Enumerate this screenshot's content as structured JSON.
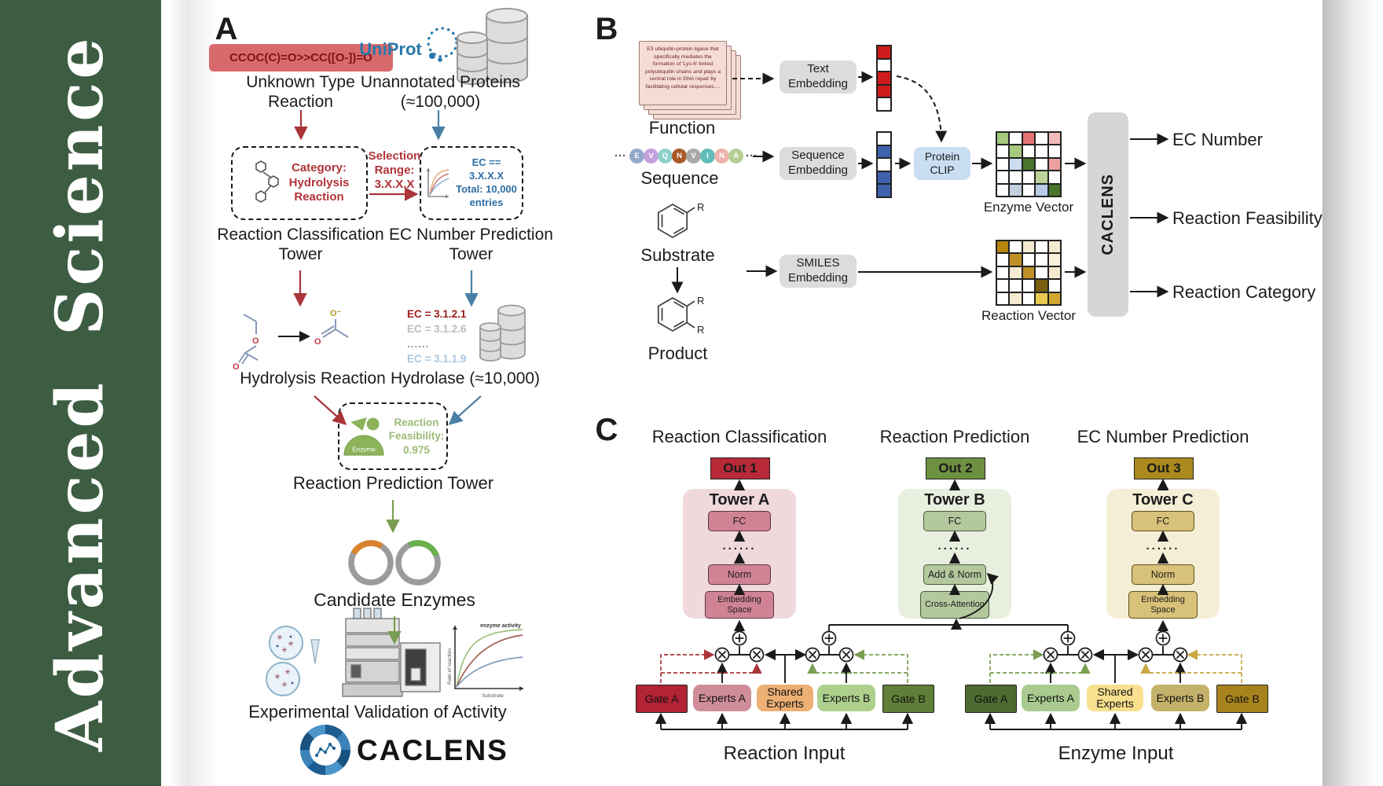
{
  "colors": {
    "sidebar_green": "#3d5d42",
    "accent_red": "#a93439",
    "accent_blue": "#4a7fa5",
    "accent_green": "#7a9e52",
    "uniprot_blue": "#2878ab"
  },
  "journal": {
    "name": "Advanced Science"
  },
  "panel_a": {
    "label": "A",
    "smiles": "CCOC(C)=O>>CC([O-])=O",
    "unknown_reaction": "Unknown Type Reaction",
    "uniprot": "UniProt",
    "unannotated": "Unannotated Proteins (≈100,000)",
    "category_lines": [
      "Category:",
      "Hydrolysis",
      "Reaction"
    ],
    "selection_lines": [
      "Selection",
      "Range:",
      "3.X.X.X"
    ],
    "ec_box_lines": [
      "EC == 3.X.X.X",
      "Total: 10,000",
      "entries"
    ],
    "classification_tower": "Reaction Classification Tower",
    "ec_tower": "EC Number Prediction Tower",
    "hydrolysis": "Hydrolysis Reaction",
    "ec_items": [
      "EC = 3.1.2.1",
      "EC = 3.1.2.6",
      "......",
      "EC = 3.1.1.9"
    ],
    "hydrolase": "Hydrolase (≈10,000)",
    "enzyme": "Enzyme",
    "feasibility_lines": [
      "Reaction",
      "Feasibility:",
      "0.975"
    ],
    "prediction_tower": "Reaction Prediction Tower",
    "candidate": "Candidate Enzymes",
    "validation": "Experimental Validation of Activity",
    "brand": "CACLENS",
    "atoms": {
      "o": "O",
      "o_minus": "O⁻"
    },
    "activity_chart": {
      "annotation": "enzyme activity",
      "ylabel": "Rate of reaction",
      "xlabel": "Substrate"
    }
  },
  "panel_b": {
    "label": "B",
    "function_card": "E3 ubiquitin-protein ligase that specifically mediates the formation of 'Lys-6'-linked polyubiquitin chains and plays a central role in DNA repair by facilitating cellular responses....",
    "function": "Function",
    "ellipsis": "···",
    "sequence_letters": [
      "E",
      "V",
      "Q",
      "N",
      "V",
      "I",
      "N",
      "A"
    ],
    "sequence_colors": [
      "#93a9cc",
      "#c2a0dc",
      "#8fd0cc",
      "#a85a28",
      "#a9a9a9",
      "#62bcbc",
      "#edb3ac",
      "#b5cf92"
    ],
    "sequence": "Sequence",
    "substrate": "Substrate",
    "product": "Product",
    "r": "R",
    "text_embedding": "Text Embedding",
    "sequence_embedding": "Sequence Embedding",
    "smiles_embedding": "SMILES Embedding",
    "protein_clip": "Protein CLIP",
    "text_vector": [
      "#cf1b1b",
      "#ffffff",
      "#cf1b1b",
      "#cf1b1b",
      "#ffffff"
    ],
    "sequence_vector": [
      "#ffffff",
      "#3f62ad",
      "#ffffff",
      "#3f62ad",
      "#3f62ad"
    ],
    "enzyme_vector_label": "Enzyme Vector",
    "reaction_vector_label": "Reaction Vector",
    "enzyme_grid": [
      [
        "#a6c97e",
        "#ffffff",
        "#e57373",
        "#ffffff",
        "#f2bcbc"
      ],
      [
        "#ffffff",
        "#a6c97e",
        "#ffffff",
        "#ffffff",
        "#ffffff"
      ],
      [
        "#ffffff",
        "#ccdcf0",
        "#49752c",
        "#ffffff",
        "#eda0a0"
      ],
      [
        "#ffffff",
        "#ffffff",
        "#ffffff",
        "#bcd49a",
        "#ffffff"
      ],
      [
        "#ffffff",
        "#c3cede",
        "#ffffff",
        "#b8cce8",
        "#49752c"
      ]
    ],
    "reaction_grid": [
      [
        "#b8860b",
        "#ffffff",
        "#f3ead0",
        "#ffffff",
        "#f3ead0"
      ],
      [
        "#ffffff",
        "#bf9025",
        "#ffffff",
        "#ffffff",
        "#f8f2dd"
      ],
      [
        "#ffffff",
        "#f3ead0",
        "#bf9025",
        "#ffffff",
        "#f3ead0"
      ],
      [
        "#ffffff",
        "#ffffff",
        "#ffffff",
        "#7a5f10",
        "#ffffff"
      ],
      [
        "#ffffff",
        "#f3ead0",
        "#ffffff",
        "#e9c94f",
        "#d1a832"
      ]
    ],
    "caclens": "CACLENS",
    "outputs": [
      "EC Number",
      "Reaction Feasibility",
      "Reaction Category"
    ]
  },
  "panel_c": {
    "label": "C",
    "columns": [
      {
        "header": "Reaction Classification",
        "out": "Out 1",
        "tower": "Tower A",
        "fc": "FC",
        "dots": "......",
        "mid": "Norm",
        "bottom": "Embedding Space",
        "theme": {
          "container": "#efd9dc",
          "box": "#d08394",
          "border": "#5c3540",
          "out": "#b92a38"
        }
      },
      {
        "header": "Reaction Prediction",
        "out": "Out 2",
        "tower": "Tower B",
        "fc": "FC",
        "dots": "......",
        "mid": "Add & Norm",
        "bottom": "Cross-Attention",
        "theme": {
          "container": "#e8efdf",
          "box": "#b3c89d",
          "border": "#4c5a3c",
          "out": "#6d9141"
        }
      },
      {
        "header": "EC Number Prediction",
        "out": "Out 3",
        "tower": "Tower C",
        "fc": "FC",
        "dots": "......",
        "mid": "Norm",
        "bottom": "Embedding Space",
        "theme": {
          "container": "#f5eed6",
          "box": "#d8c178",
          "border": "#5c5020",
          "out": "#aa8a1e"
        }
      }
    ],
    "groups": [
      {
        "gate_a": "Gate A",
        "experts_a": "Experts A",
        "shared": "Shared Experts",
        "experts_b": "Experts B",
        "gate_b": "Gate B",
        "input": "Reaction Input",
        "colors": {
          "gate_a": "#b22335",
          "experts_a": "#cf8d99",
          "shared": "#ecaf74",
          "experts_b": "#aed08d",
          "gate_b": "#5f7e37"
        }
      },
      {
        "gate_a": "Gate A",
        "experts_a": "Experts A",
        "shared": "Shared Experts",
        "experts_b": "Experts B",
        "gate_b": "Gate B",
        "input": "Enzyme Input",
        "colors": {
          "gate_a": "#4d6b31",
          "experts_a": "#a9cb90",
          "shared": "#f8e08e",
          "experts_b": "#c5b26a",
          "gate_b": "#a8831d"
        }
      }
    ]
  }
}
